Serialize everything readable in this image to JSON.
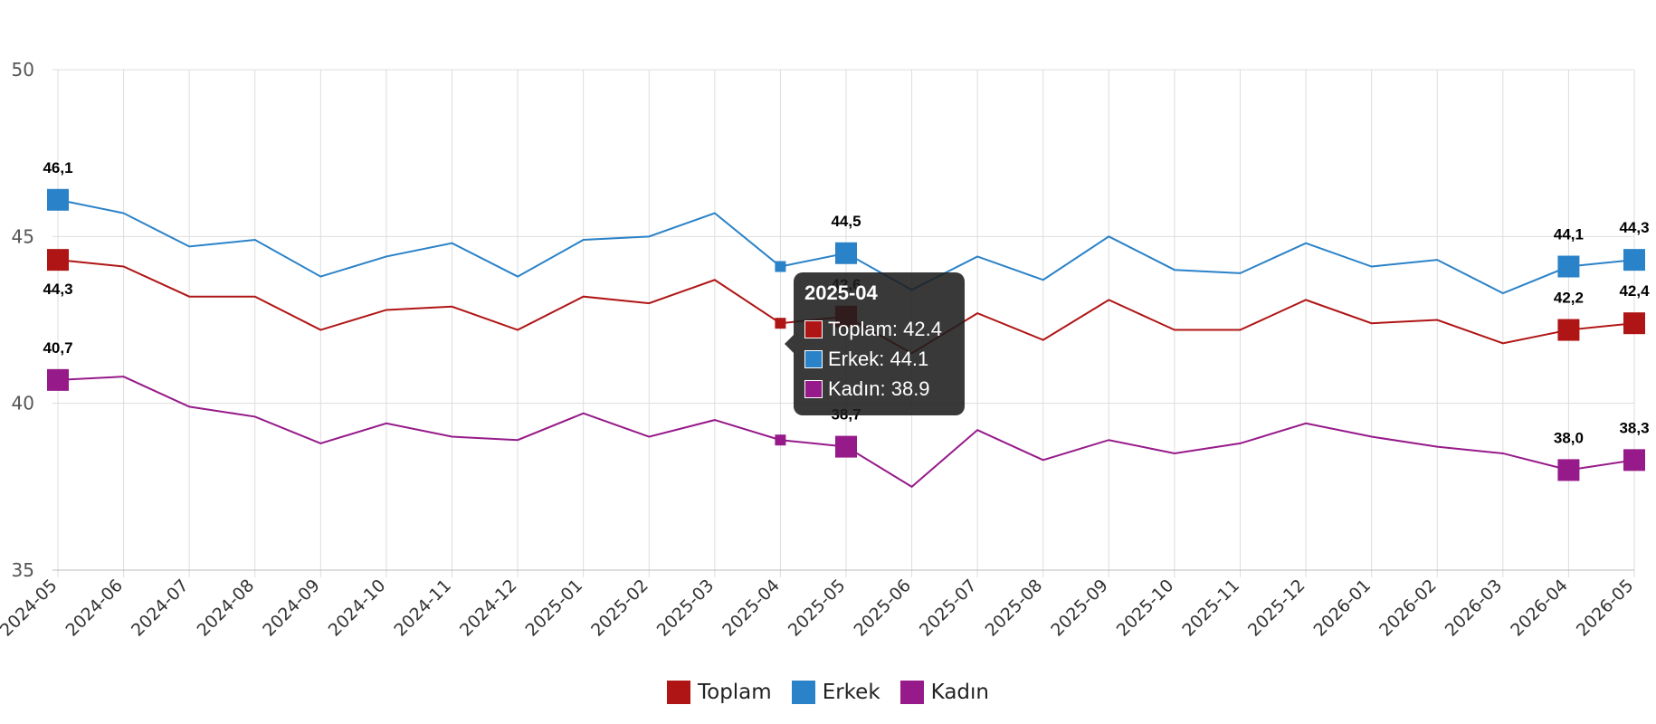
{
  "chart_data": {
    "type": "line",
    "x": [
      "2024-05",
      "2024-06",
      "2024-07",
      "2024-08",
      "2024-09",
      "2024-10",
      "2024-11",
      "2024-12",
      "2025-01",
      "2025-02",
      "2025-03",
      "2025-04",
      "2025-05",
      "2025-06",
      "2025-07",
      "2025-08",
      "2025-09",
      "2025-10",
      "2025-11",
      "2025-12",
      "2026-01",
      "2026-02",
      "2026-03",
      "2026-04",
      "2026-05"
    ],
    "ylim": [
      35,
      50
    ],
    "yticks": [
      35,
      40,
      45,
      50
    ],
    "grid": true,
    "legend_position": "bottom",
    "series": [
      {
        "name": "Toplam",
        "color": "#b01515",
        "values": [
          44.3,
          44.1,
          43.2,
          43.2,
          42.2,
          42.8,
          42.9,
          42.2,
          43.2,
          43.0,
          43.7,
          42.4,
          42.6,
          41.5,
          42.7,
          41.9,
          43.1,
          42.2,
          42.2,
          43.1,
          42.4,
          42.5,
          41.8,
          42.2,
          42.4
        ]
      },
      {
        "name": "Erkek",
        "color": "#2a82c8",
        "values": [
          46.1,
          45.7,
          44.7,
          44.9,
          43.8,
          44.4,
          44.8,
          43.8,
          44.9,
          45.0,
          45.7,
          44.1,
          44.5,
          43.4,
          44.4,
          43.7,
          45.0,
          44.0,
          43.9,
          44.8,
          44.1,
          44.3,
          43.3,
          44.1,
          44.3
        ]
      },
      {
        "name": "Kadın",
        "color": "#961a8a",
        "values": [
          40.7,
          40.8,
          39.9,
          39.6,
          38.8,
          39.4,
          39.0,
          38.9,
          39.7,
          39.0,
          39.5,
          38.9,
          38.7,
          37.5,
          39.2,
          38.3,
          38.9,
          38.5,
          38.8,
          39.4,
          39.0,
          38.7,
          38.5,
          38.0,
          38.3
        ]
      }
    ],
    "data_labels": [
      {
        "series": "Erkek",
        "x": "2024-05",
        "text": "46,1"
      },
      {
        "series": "Toplam",
        "x": "2024-05",
        "text": "44,3"
      },
      {
        "series": "Kadın",
        "x": "2024-05",
        "text": "40,7"
      },
      {
        "series": "Erkek",
        "x": "2025-05",
        "text": "44,5"
      },
      {
        "series": "Toplam",
        "x": "2025-05",
        "text": "42,6"
      },
      {
        "series": "Kadın",
        "x": "2025-05",
        "text": "38,7"
      },
      {
        "series": "Erkek",
        "x": "2026-04",
        "text": "44,1"
      },
      {
        "series": "Toplam",
        "x": "2026-04",
        "text": "42,2"
      },
      {
        "series": "Kadın",
        "x": "2026-04",
        "text": "38,0"
      },
      {
        "series": "Erkek",
        "x": "2026-05",
        "text": "44,3"
      },
      {
        "series": "Toplam",
        "x": "2026-05",
        "text": "42,4"
      },
      {
        "series": "Kadın",
        "x": "2026-05",
        "text": "38,3"
      }
    ]
  },
  "tooltip": {
    "title": "2025-04",
    "rows": [
      {
        "label": "Toplam: 42.4",
        "color": "#b01515"
      },
      {
        "label": "Erkek: 44.1",
        "color": "#2a82c8"
      },
      {
        "label": "Kadın: 38.9",
        "color": "#961a8a"
      }
    ]
  },
  "legend": [
    {
      "label": "Toplam",
      "color": "#b01515"
    },
    {
      "label": "Erkek",
      "color": "#2a82c8"
    },
    {
      "label": "Kadın",
      "color": "#961a8a"
    }
  ]
}
